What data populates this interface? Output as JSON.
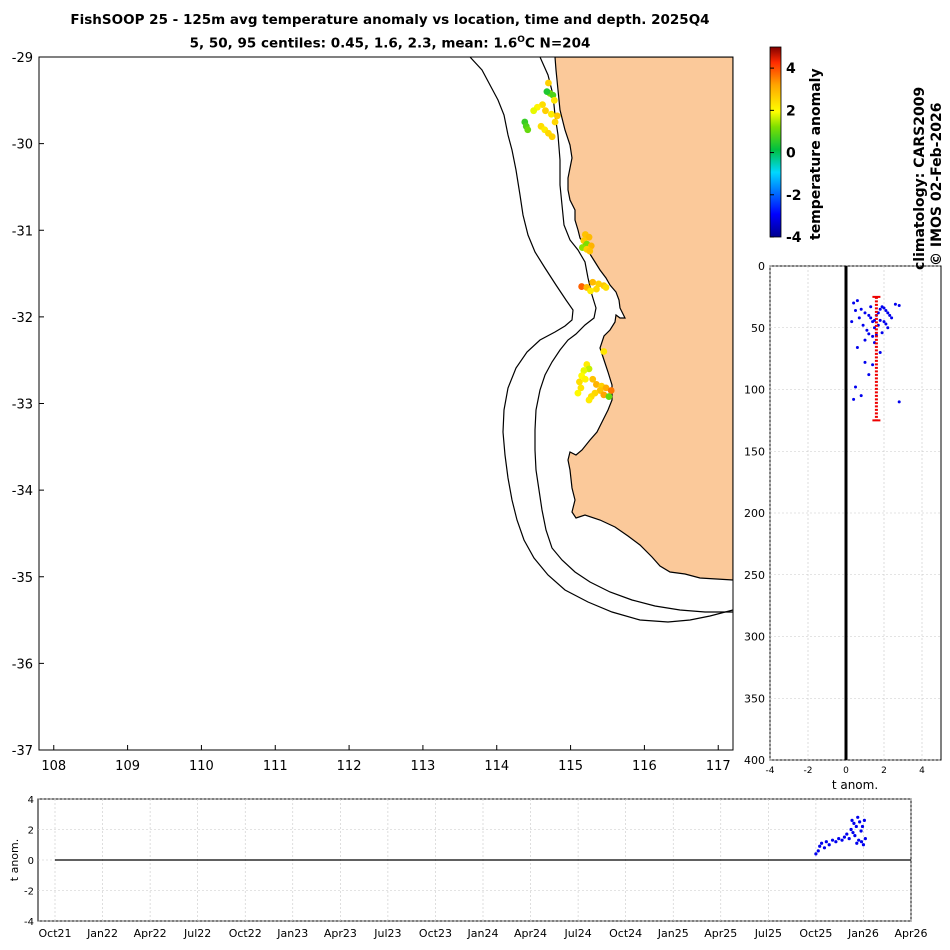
{
  "header": {
    "title_line1": "FishSOOP 25 - 125m avg temperature anomaly vs location, time and depth. 2025Q4",
    "title_line2_prefix": "5, 50, 95 centiles: 0.45, 1.6, 2.3, mean: 1.6",
    "title_line2_unit_sup": "O",
    "title_line2_suffix": "C N=204"
  },
  "side_labels": {
    "climatology": "climatology: CARS2009",
    "credit": "© IMOS 02-Feb-2026"
  },
  "colors": {
    "land": "#fbc99a",
    "points_blue": "#0000ee",
    "errorbar_red": "#ee0000",
    "grid": "#c8c8c8"
  },
  "chart_data": [
    {
      "name": "map",
      "type": "scatter",
      "title": "",
      "xlabel": "",
      "ylabel": "",
      "xlim": [
        107.8,
        117.2
      ],
      "ylim": [
        -37,
        -29
      ],
      "x_ticks": [
        108,
        109,
        110,
        111,
        112,
        113,
        114,
        115,
        116,
        117
      ],
      "y_ticks": [
        -29,
        -30,
        -31,
        -32,
        -33,
        -34,
        -35,
        -36,
        -37
      ],
      "grid": false,
      "points": [
        [
          114.72,
          -29.42,
          1.2
        ],
        [
          114.68,
          -29.4,
          0.4
        ],
        [
          114.76,
          -29.44,
          0.8
        ],
        [
          114.78,
          -29.5,
          2.3
        ],
        [
          114.7,
          -29.3,
          2.6
        ],
        [
          114.62,
          -29.55,
          2.4
        ],
        [
          114.55,
          -29.58,
          2.1
        ],
        [
          114.5,
          -29.62,
          1.8
        ],
        [
          114.66,
          -29.62,
          2.6
        ],
        [
          114.74,
          -29.66,
          2.2
        ],
        [
          114.82,
          -29.68,
          2.7
        ],
        [
          114.79,
          -29.75,
          2.5
        ],
        [
          114.6,
          -29.8,
          2.4
        ],
        [
          114.65,
          -29.84,
          2.2
        ],
        [
          114.7,
          -29.88,
          2.5
        ],
        [
          114.75,
          -29.92,
          2.6
        ],
        [
          114.38,
          -29.75,
          0.6
        ],
        [
          114.4,
          -29.8,
          0.8
        ],
        [
          114.42,
          -29.84,
          1.0
        ],
        [
          115.2,
          -31.05,
          2.8
        ],
        [
          115.25,
          -31.08,
          2.9
        ],
        [
          115.18,
          -31.12,
          2.7
        ],
        [
          115.22,
          -31.16,
          1.2
        ],
        [
          115.28,
          -31.18,
          3.0
        ],
        [
          115.16,
          -31.2,
          1.3
        ],
        [
          115.22,
          -31.22,
          2.6
        ],
        [
          115.26,
          -31.24,
          2.8
        ],
        [
          115.15,
          -31.65,
          3.8
        ],
        [
          115.22,
          -31.66,
          2.9
        ],
        [
          115.3,
          -31.6,
          2.9
        ],
        [
          115.38,
          -31.62,
          2.6
        ],
        [
          115.45,
          -31.64,
          2.7
        ],
        [
          115.48,
          -31.66,
          2.4
        ],
        [
          115.35,
          -31.68,
          2.5
        ],
        [
          115.27,
          -31.7,
          2.2
        ],
        [
          115.45,
          -32.4,
          2.3
        ],
        [
          115.22,
          -32.55,
          2.2
        ],
        [
          115.25,
          -32.6,
          1.6
        ],
        [
          115.18,
          -32.62,
          1.8
        ],
        [
          115.15,
          -32.68,
          2.0
        ],
        [
          115.12,
          -32.75,
          2.4
        ],
        [
          115.2,
          -32.72,
          2.1
        ],
        [
          115.14,
          -32.82,
          2.3
        ],
        [
          115.1,
          -32.88,
          2.0
        ],
        [
          115.3,
          -32.72,
          2.8
        ],
        [
          115.35,
          -32.78,
          3.0
        ],
        [
          115.42,
          -32.8,
          2.6
        ],
        [
          115.4,
          -32.85,
          2.8
        ],
        [
          115.48,
          -32.82,
          3.1
        ],
        [
          115.33,
          -32.88,
          2.5
        ],
        [
          115.28,
          -32.92,
          2.4
        ],
        [
          115.45,
          -32.9,
          3.2
        ],
        [
          115.55,
          -32.85,
          3.6
        ],
        [
          115.52,
          -32.92,
          1.0
        ],
        [
          115.25,
          -32.96,
          2.2
        ]
      ]
    },
    {
      "name": "depth_profile",
      "type": "scatter",
      "xlabel": "t anom.",
      "ylabel": "",
      "xlim": [
        -4,
        5
      ],
      "ylim": [
        400,
        0
      ],
      "x_ticks": [
        -4,
        -2,
        0,
        2,
        4
      ],
      "y_ticks": [
        0,
        50,
        100,
        150,
        200,
        250,
        300,
        350,
        400
      ],
      "grid": true,
      "zero_line_x": 0,
      "errorbar": {
        "x": 1.6,
        "depth_min": 25,
        "depth_max": 125
      },
      "points": [
        [
          0.4,
          30
        ],
        [
          0.6,
          28
        ],
        [
          0.8,
          35
        ],
        [
          1.0,
          38
        ],
        [
          1.2,
          40
        ],
        [
          1.3,
          42
        ],
        [
          1.4,
          45
        ],
        [
          1.5,
          44
        ],
        [
          1.6,
          40
        ],
        [
          1.7,
          38
        ],
        [
          1.8,
          35
        ],
        [
          1.9,
          33
        ],
        [
          2.0,
          34
        ],
        [
          2.1,
          36
        ],
        [
          2.2,
          38
        ],
        [
          2.3,
          40
        ],
        [
          1.5,
          50
        ],
        [
          1.7,
          48
        ],
        [
          2.0,
          45
        ],
        [
          2.4,
          42
        ],
        [
          2.6,
          31
        ],
        [
          2.8,
          32
        ],
        [
          1.2,
          55
        ],
        [
          1.4,
          57
        ],
        [
          1.0,
          60
        ],
        [
          0.7,
          42
        ],
        [
          0.5,
          36
        ],
        [
          0.3,
          45
        ],
        [
          0.9,
          48
        ],
        [
          1.1,
          52
        ],
        [
          1.6,
          56
        ],
        [
          1.9,
          54
        ],
        [
          2.2,
          50
        ],
        [
          1.8,
          44
        ],
        [
          1.3,
          33
        ],
        [
          0.6,
          66
        ],
        [
          1.0,
          78
        ],
        [
          1.4,
          80
        ],
        [
          0.5,
          98
        ],
        [
          0.8,
          105
        ],
        [
          0.4,
          108
        ],
        [
          1.8,
          70
        ],
        [
          2.8,
          110
        ],
        [
          1.2,
          88
        ],
        [
          1.5,
          62
        ],
        [
          2.1,
          47
        ]
      ]
    },
    {
      "name": "timeseries",
      "type": "scatter",
      "xlabel": "",
      "ylabel": "t anom.",
      "ylim": [
        -4,
        4
      ],
      "x_ticks": [
        "Oct21",
        "Jan22",
        "Apr22",
        "Jul22",
        "Oct22",
        "Jan23",
        "Apr23",
        "Jul23",
        "Oct23",
        "Jan24",
        "Apr24",
        "Jul24",
        "Oct24",
        "Jan25",
        "Apr25",
        "Jul25",
        "Oct25",
        "Jan26",
        "Apr26"
      ],
      "y_ticks": [
        -4,
        -2,
        0,
        2,
        4
      ],
      "grid": true,
      "zero_line_y": 0,
      "points": [
        [
          16.0,
          0.4
        ],
        [
          16.05,
          0.6
        ],
        [
          16.08,
          0.9
        ],
        [
          16.12,
          1.1
        ],
        [
          16.18,
          0.8
        ],
        [
          16.22,
          1.2
        ],
        [
          16.28,
          1.0
        ],
        [
          16.35,
          1.3
        ],
        [
          16.42,
          1.2
        ],
        [
          16.48,
          1.4
        ],
        [
          16.55,
          1.3
        ],
        [
          16.6,
          1.5
        ],
        [
          16.65,
          1.7
        ],
        [
          16.7,
          1.4
        ],
        [
          16.74,
          2.0
        ],
        [
          16.78,
          1.8
        ],
        [
          16.8,
          2.4
        ],
        [
          16.82,
          1.6
        ],
        [
          16.85,
          2.2
        ],
        [
          16.88,
          2.8
        ],
        [
          16.9,
          1.3
        ],
        [
          16.92,
          2.5
        ],
        [
          16.95,
          1.9
        ],
        [
          16.98,
          2.2
        ],
        [
          17.0,
          1.0
        ],
        [
          17.02,
          2.6
        ],
        [
          17.04,
          1.4
        ],
        [
          16.96,
          1.2
        ],
        [
          16.86,
          1.1
        ],
        [
          16.76,
          2.6
        ]
      ]
    }
  ],
  "colorbar": {
    "label": "temperature anomaly",
    "min": -4,
    "max": 5,
    "tick_labels": [
      "4",
      "2",
      "0",
      "-2",
      "-4"
    ]
  }
}
